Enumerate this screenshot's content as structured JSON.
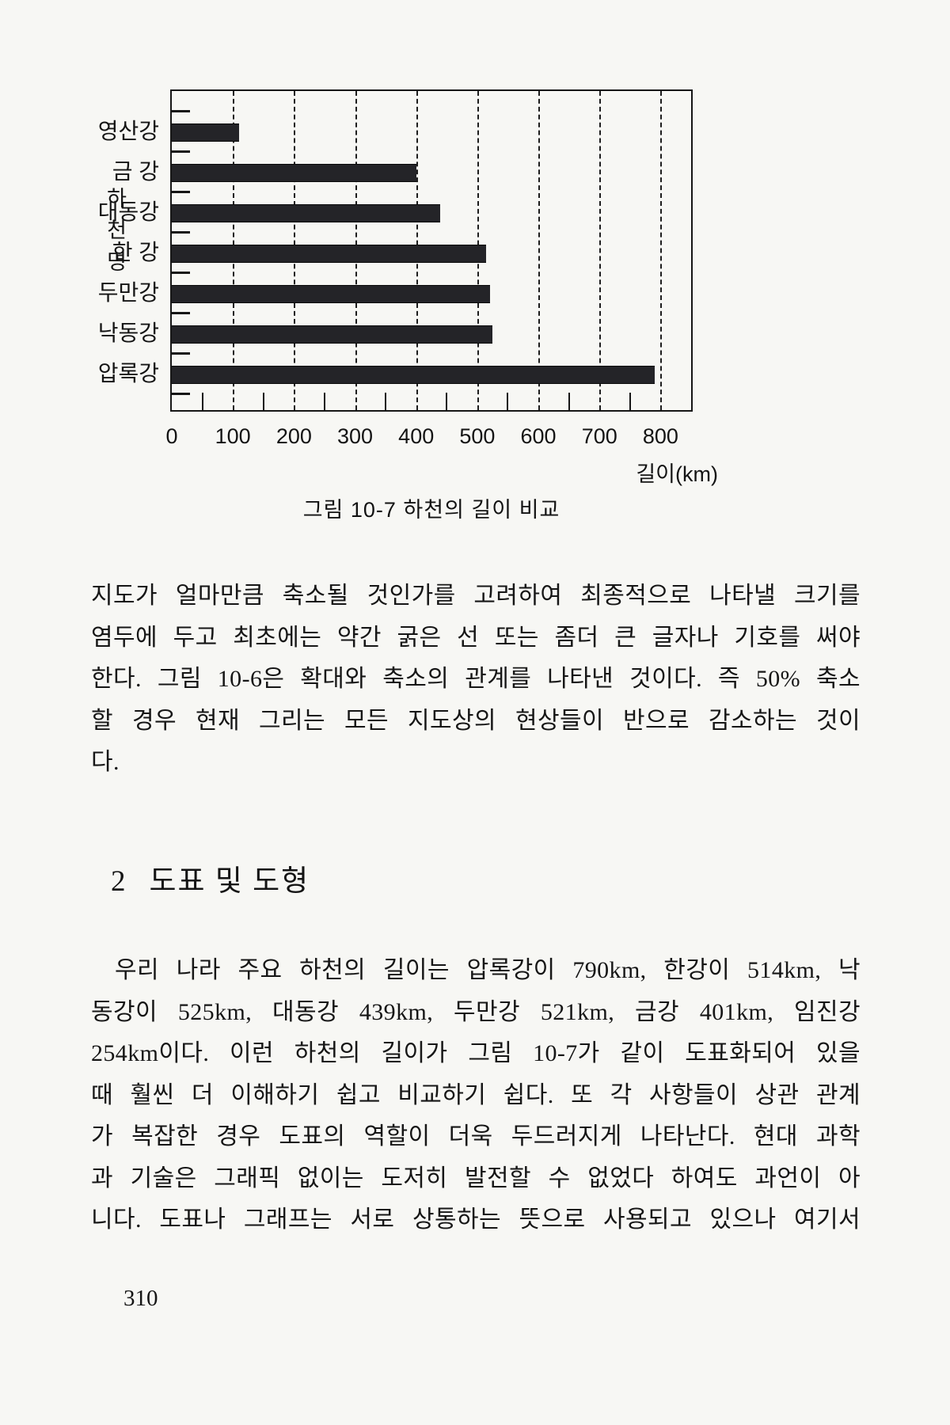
{
  "page": {
    "number": "310"
  },
  "chart_data": {
    "type": "bar",
    "orientation": "horizontal",
    "caption": "그림 10-7  하천의 길이 비교",
    "y_axis_title": "하천명",
    "x_axis_label": "길이(km)",
    "categories": [
      "영산강",
      "금 강",
      "대동강",
      "한 강",
      "두만강",
      "낙동강",
      "압록강"
    ],
    "values": [
      110,
      401,
      439,
      514,
      521,
      525,
      790
    ],
    "xlim": [
      0,
      850
    ],
    "x_ticks": [
      0,
      100,
      200,
      300,
      400,
      500,
      600,
      700,
      800
    ],
    "grid": "dashed-vertical-major, minor-ticks-every-50",
    "legend": "none",
    "bar_color": "#242428",
    "frame": "full-box"
  },
  "paragraph1": {
    "lines": [
      "지도가 얼마만큼 축소될 것인가를 고려하여 최종적으로 나타낼 크기를",
      "염두에 두고 최초에는 약간 굵은 선 또는 좀더 큰 글자나 기호를 써야",
      "한다. 그림 10-6은 확대와 축소의 관계를 나타낸 것이다. 즉 50% 축소",
      "할 경우 현재 그리는 모든 지도상의 현상들이 반으로 감소하는 것이",
      "다."
    ]
  },
  "heading": {
    "number": "2",
    "title": "도표 및 도형"
  },
  "paragraph2": {
    "lines": [
      "우리 나라 주요 하천의 길이는 압록강이 790km, 한강이 514km, 낙",
      "동강이 525km, 대동강 439km, 두만강 521km, 금강 401km, 임진강",
      "254km이다. 이런 하천의 길이가 그림 10-7가 같이 도표화되어 있을",
      "때 훨씬 더 이해하기 쉽고 비교하기 쉽다. 또 각 사항들이 상관 관계",
      "가 복잡한 경우 도표의 역할이 더욱 두드러지게 나타난다. 현대 과학",
      "과 기술은 그래픽 없이는 도저히 발전할 수 없었다 하여도 과언이 아",
      "니다. 도표나 그래프는 서로 상통하는 뜻으로 사용되고 있으나 여기서"
    ]
  }
}
